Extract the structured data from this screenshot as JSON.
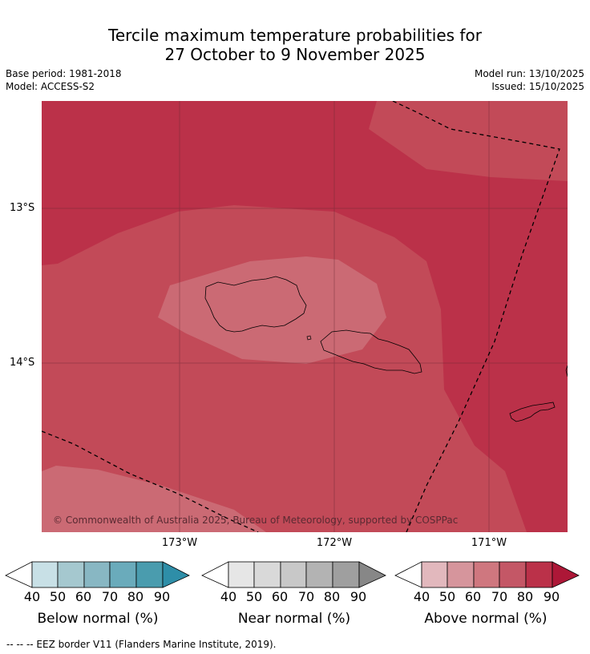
{
  "header": {
    "title_line1": "Tercile maximum temperature probabilities for",
    "title_line2": "27 October to 9 November 2025",
    "base_period": "Base period: 1981-2018",
    "model": "Model: ACCESS-S2",
    "model_run": "Model run: 13/10/2025",
    "issued": "Issued: 15/10/2025"
  },
  "map": {
    "lon_labels": [
      "173°W",
      "172°W",
      "171°W"
    ],
    "lat_labels": [
      "13°S",
      "14°S"
    ],
    "copyright": "© Commonwealth of Australia 2025, Bureau of Meteorology, supported by COSPPac",
    "colors": {
      "above_80_90": "#bb3149",
      "above_70_80": "#c24a58",
      "above_60_70": "#cb6a74",
      "coastline": "#000000",
      "eez_border": "#000000"
    }
  },
  "colorbars": [
    {
      "title": "Below normal (%)",
      "ticks": [
        "40",
        "50",
        "60",
        "70",
        "80",
        "90"
      ],
      "colors": [
        "#ffffff",
        "#c8e0e6",
        "#a5c8cf",
        "#88b7c3",
        "#6aabbb",
        "#4a9cae",
        "#2e8ea8"
      ]
    },
    {
      "title": "Near normal (%)",
      "ticks": [
        "40",
        "50",
        "60",
        "70",
        "80",
        "90"
      ],
      "colors": [
        "#ffffff",
        "#e6e6e6",
        "#d9d9d9",
        "#c8c8c8",
        "#b3b3b3",
        "#9f9f9f",
        "#878787"
      ]
    },
    {
      "title": "Above normal (%)",
      "ticks": [
        "40",
        "50",
        "60",
        "70",
        "80",
        "90"
      ],
      "colors": [
        "#ffffff",
        "#e2b8bd",
        "#d6959c",
        "#cf777f",
        "#c45766",
        "#bb3149",
        "#ad1737"
      ]
    }
  ],
  "footnote": "--  --  -- EEZ border V11 (Flanders Marine Institute, 2019)."
}
